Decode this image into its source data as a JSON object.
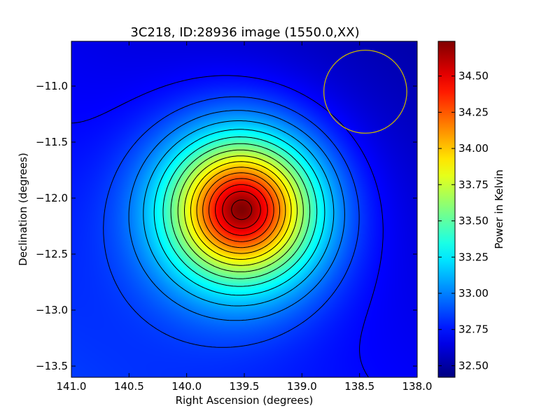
{
  "chart_data": {
    "type": "heatmap",
    "title": "3C218, ID:28936 image (1550.0,XX)",
    "xlabel": "Right Ascension (degrees)",
    "ylabel": "Declination (degrees)",
    "colorbar_label": "Power in Kelvin",
    "colormap": "jet",
    "x_range": [
      141.0,
      138.0
    ],
    "y_range": [
      -13.6,
      -10.6
    ],
    "x_ticks": [
      {
        "value": 141.0,
        "label": "141.0"
      },
      {
        "value": 140.5,
        "label": "140.5"
      },
      {
        "value": 140.0,
        "label": "140.0"
      },
      {
        "value": 139.5,
        "label": "139.5"
      },
      {
        "value": 139.0,
        "label": "139.0"
      },
      {
        "value": 138.5,
        "label": "138.5"
      },
      {
        "value": 138.0,
        "label": "138.0"
      }
    ],
    "y_ticks": [
      {
        "value": -11.0,
        "label": "−11.0"
      },
      {
        "value": -11.5,
        "label": "−11.5"
      },
      {
        "value": -12.0,
        "label": "−12.0"
      },
      {
        "value": -12.5,
        "label": "−12.5"
      },
      {
        "value": -13.0,
        "label": "−13.0"
      },
      {
        "value": -13.5,
        "label": "−13.5"
      }
    ],
    "colorbar_range": [
      32.42,
      34.74
    ],
    "colorbar_ticks": [
      {
        "value": 32.5,
        "label": "32.50"
      },
      {
        "value": 32.75,
        "label": "32.75"
      },
      {
        "value": 33.0,
        "label": "33.00"
      },
      {
        "value": 33.25,
        "label": "33.25"
      },
      {
        "value": 33.5,
        "label": "33.50"
      },
      {
        "value": 33.75,
        "label": "33.75"
      },
      {
        "value": 34.0,
        "label": "34.00"
      },
      {
        "value": 34.25,
        "label": "34.25"
      },
      {
        "value": 34.5,
        "label": "34.50"
      }
    ],
    "source": {
      "ra": 139.52,
      "dec": -12.1,
      "peak_value": 34.74,
      "background_value": 32.68
    },
    "contour_levels": [
      32.72,
      32.85,
      32.98,
      33.11,
      33.24,
      33.37,
      33.5,
      33.63,
      33.76,
      33.89,
      34.02,
      34.15,
      34.28,
      34.41,
      34.54,
      34.67
    ],
    "beam_circle": {
      "center_ra": 138.45,
      "center_dec": -11.05,
      "radius_deg": 0.36,
      "color": "#c8b400"
    },
    "grid": false
  }
}
